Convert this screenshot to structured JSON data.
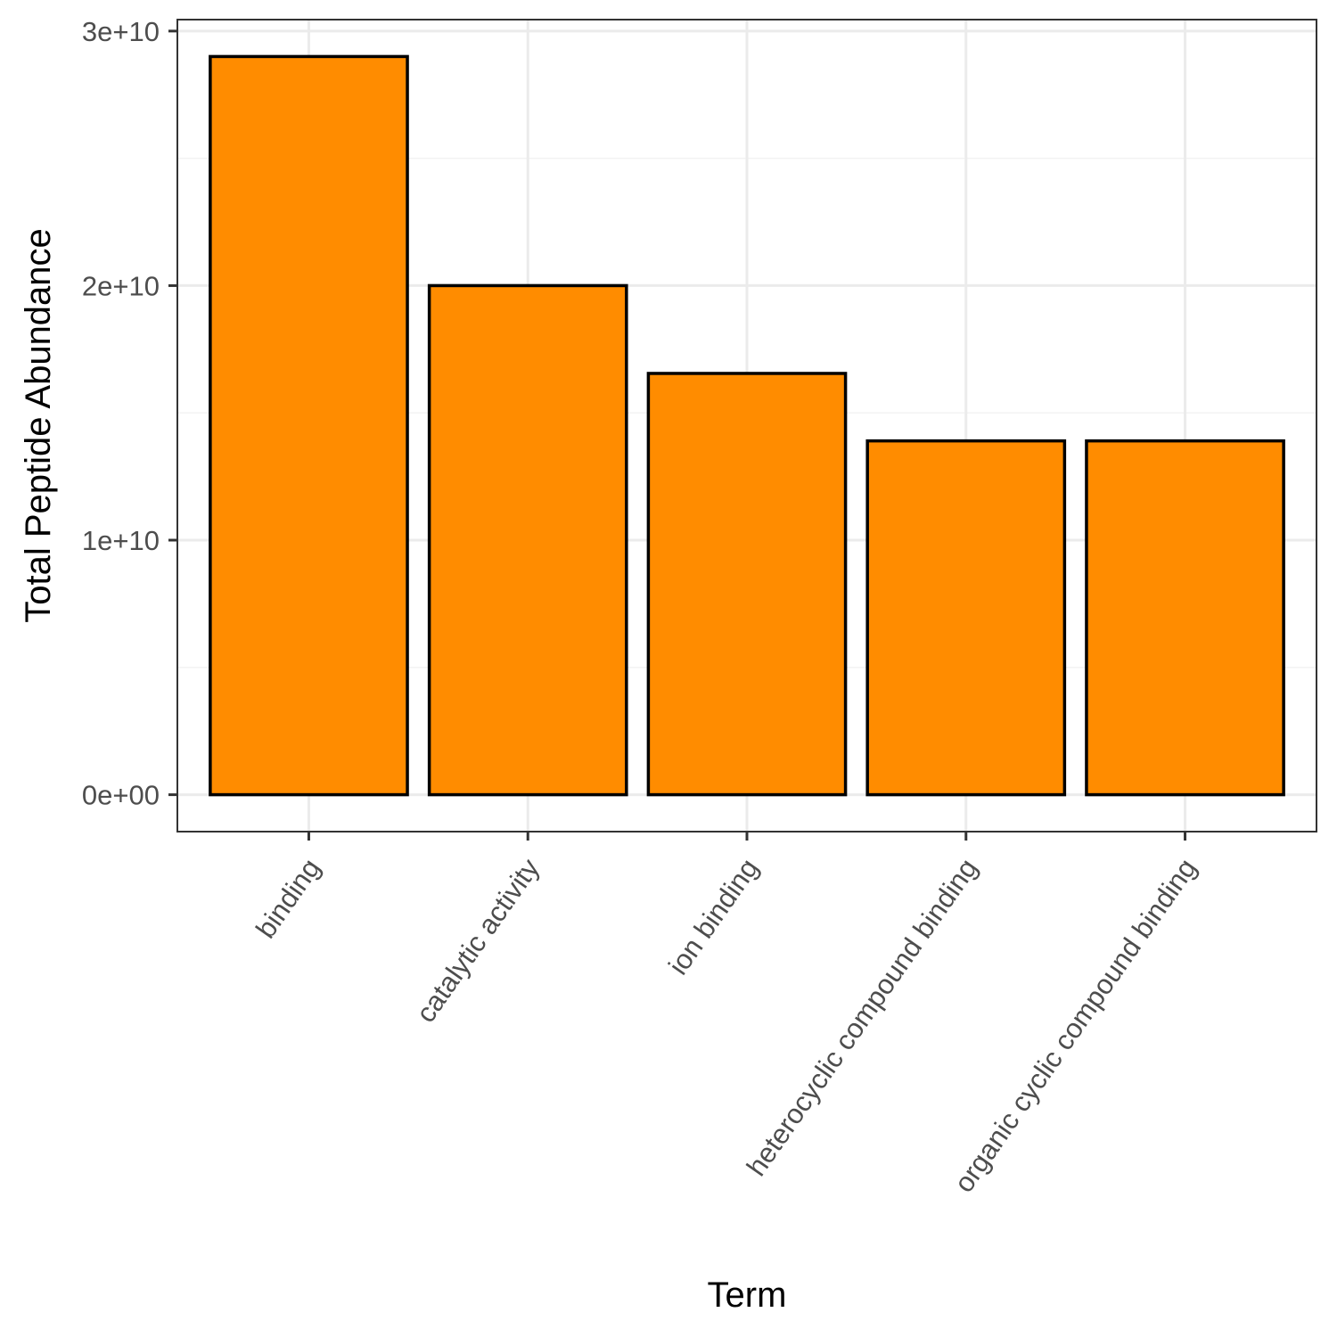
{
  "chart_data": {
    "type": "bar",
    "title": "",
    "xlabel": "Term",
    "ylabel": "Total Peptide Abundance",
    "categories": [
      "binding",
      "catalytic activity",
      "ion binding",
      "heterocyclic compound binding",
      "organic cyclic compound binding"
    ],
    "values": [
      29000000000,
      20000000000,
      16550000000,
      13900000000,
      13900000000
    ],
    "ylim": [
      -1450000000,
      30450000000
    ],
    "yticks": [
      0,
      10000000000,
      20000000000,
      30000000000
    ],
    "ytick_labels": [
      "0e+00",
      "1e+10",
      "2e+10",
      "3e+10"
    ],
    "grid": true,
    "legend": "none",
    "colors": {
      "bar_fill": "#ff8c00",
      "bar_stroke": "#000000",
      "grid_major": "#ebebeb",
      "grid_minor": "#f3f3f3",
      "panel_border": "#333333",
      "tick_text": "#4d4d4d"
    }
  }
}
